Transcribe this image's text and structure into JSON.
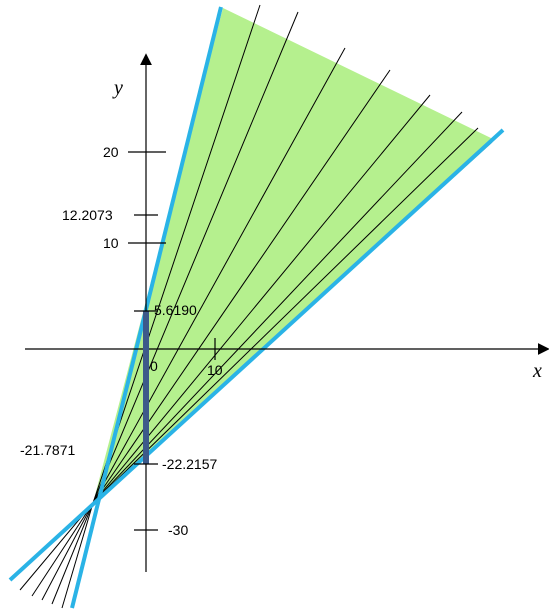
{
  "axes": {
    "x_label": "x",
    "y_label": "y",
    "x_ticks": [
      {
        "value": 0,
        "label": "0"
      },
      {
        "value": 10,
        "label": "10"
      }
    ],
    "y_ticks": [
      {
        "value": 20,
        "label": "20"
      },
      {
        "value": 12.2073,
        "label": "12.2073"
      },
      {
        "value": 10,
        "label": "10"
      },
      {
        "value": -30,
        "label": "-30"
      }
    ]
  },
  "annotations": {
    "upper_intercept": "5.6190",
    "lower_intercept": "-22.2157",
    "pivot_x": "-21.7871"
  },
  "colors": {
    "region_fill": "#b5f08e",
    "boundary": "#2ab3e6",
    "segment": "#3d5a8a",
    "line": "#000000"
  }
}
